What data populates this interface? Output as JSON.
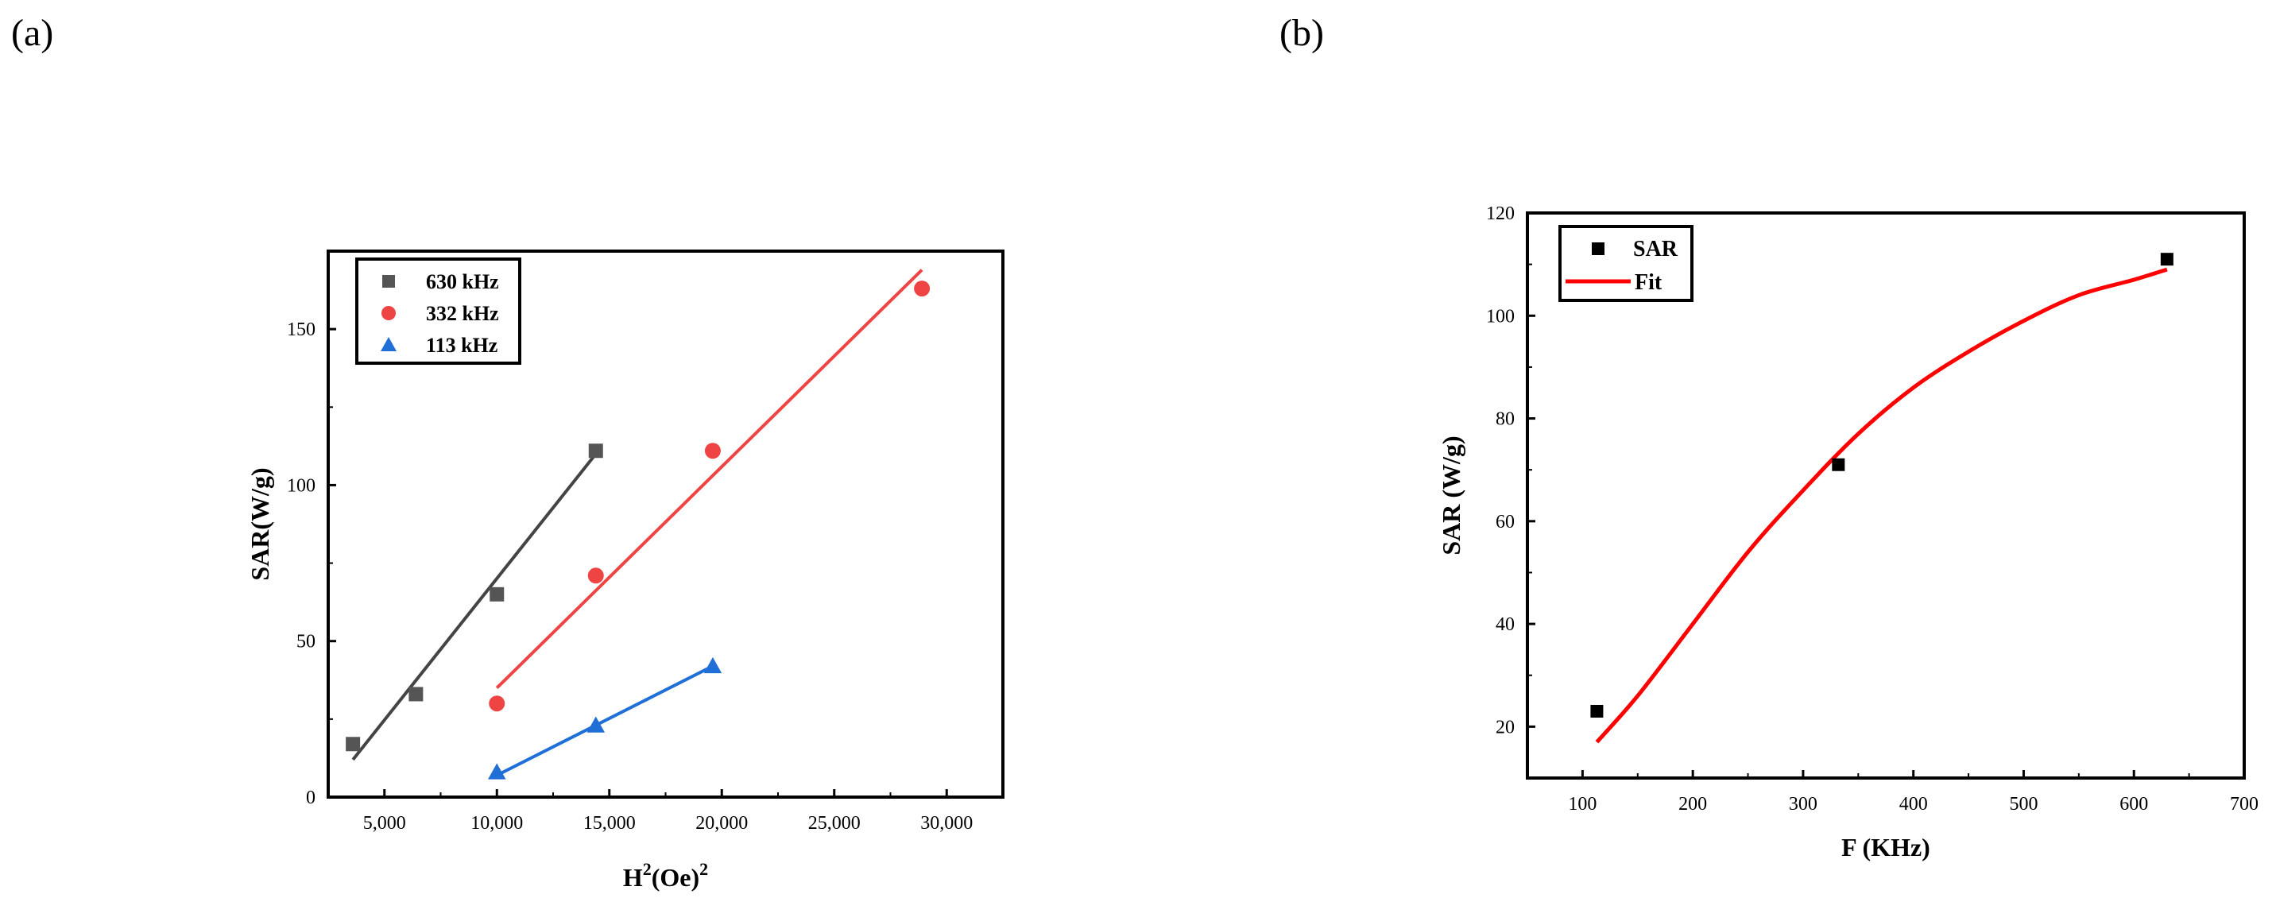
{
  "panels": {
    "a_label": "(a)",
    "b_label": "(b)"
  },
  "chart_data": [
    {
      "type": "scatter",
      "panel": "(a)",
      "xlabel_main": "H",
      "xlabel_sup1": "2",
      "xlabel_mid": "(Oe)",
      "xlabel_sup2": "2",
      "ylabel": "SAR(W/g)",
      "xlim": [
        2500,
        32500
      ],
      "ylim": [
        0,
        175
      ],
      "xticks": [
        5000,
        10000,
        15000,
        20000,
        25000,
        30000
      ],
      "xtick_labels": [
        "5,000",
        "10,000",
        "15,000",
        "20,000",
        "25,000",
        "30,000"
      ],
      "yticks": [
        0,
        50,
        100,
        150
      ],
      "ytick_labels": [
        "0",
        "50",
        "100",
        "150"
      ],
      "legend_position": "top-left",
      "series": [
        {
          "name": "630 kHz",
          "marker": "square",
          "color": "#555555",
          "line_color": "#444444",
          "x": [
            3600,
            6400,
            10000,
            14400
          ],
          "y": [
            17,
            33,
            65,
            111
          ],
          "fit": {
            "x": [
              3600,
              14400
            ],
            "y": [
              12,
              110
            ]
          }
        },
        {
          "name": "332 kHz",
          "marker": "circle",
          "color": "#ef4444",
          "line_color": "#ef4444",
          "x": [
            10000,
            14400,
            19600,
            28900
          ],
          "y": [
            30,
            71,
            111,
            163
          ],
          "fit": {
            "x": [
              10000,
              28900
            ],
            "y": [
              35,
              169
            ]
          }
        },
        {
          "name": "113 kHz",
          "marker": "triangle",
          "color": "#1f6fd6",
          "line_color": "#1f6fd6",
          "x": [
            10000,
            14400,
            19600
          ],
          "y": [
            8,
            23,
            42
          ],
          "fit": {
            "x": [
              10000,
              19600
            ],
            "y": [
              7,
              42
            ]
          }
        }
      ]
    },
    {
      "type": "scatter",
      "panel": "(b)",
      "xlabel": "F (KHz)",
      "ylabel": "SAR (W/g)",
      "xlim": [
        50,
        700
      ],
      "ylim": [
        10,
        120
      ],
      "xticks": [
        100,
        200,
        300,
        400,
        500,
        600,
        700
      ],
      "xtick_labels": [
        "100",
        "200",
        "300",
        "400",
        "500",
        "600",
        "700"
      ],
      "yticks": [
        20,
        40,
        60,
        80,
        100,
        120
      ],
      "ytick_labels": [
        "20",
        "40",
        "60",
        "80",
        "100",
        "120"
      ],
      "legend_position": "top-left",
      "series": [
        {
          "name": "SAR",
          "marker": "square",
          "color": "#000000",
          "x": [
            113,
            332,
            630
          ],
          "y": [
            23,
            71,
            111
          ]
        },
        {
          "name": "Fit",
          "marker": "line",
          "color": "#ff0000",
          "x": [
            113,
            150,
            200,
            250,
            300,
            350,
            400,
            450,
            500,
            550,
            600,
            630
          ],
          "y": [
            17,
            26,
            40,
            54,
            66,
            77,
            86,
            93,
            99,
            104,
            107,
            109
          ]
        }
      ]
    }
  ]
}
